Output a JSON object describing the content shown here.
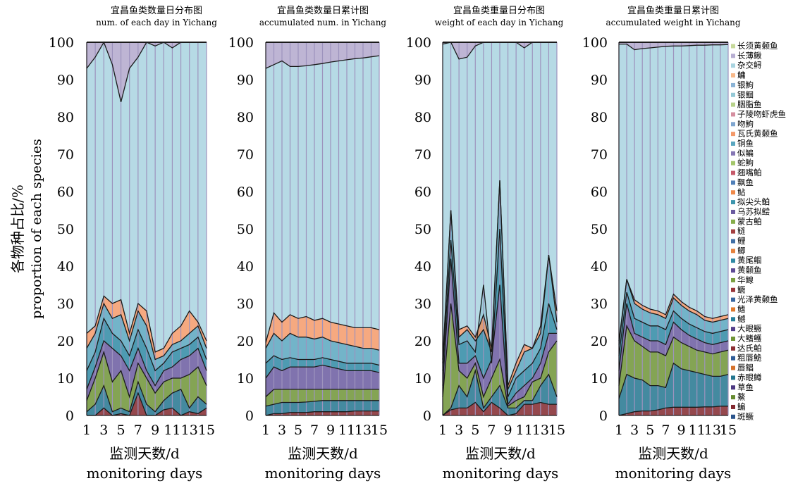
{
  "y_axis_label_cn": "各物种占比/%",
  "y_axis_label_en": "proportion of each species",
  "x_axis_label_cn": "监测天数/d",
  "x_axis_label_en": "monitoring days",
  "colors": {
    "background": "#ffffff",
    "top_band": "#b3a8cc",
    "light_cyan": "#a8d2dc",
    "orange": "#f0a070",
    "line": "#1a1a1a"
  },
  "legend": {
    "position": "right",
    "items": [
      {
        "label": "长须黄颡鱼",
        "color": "#c6d99a"
      },
      {
        "label": "长薄鳅",
        "color": "#b7aed2"
      },
      {
        "label": "杂交鲟",
        "color": "#a9d4e0"
      },
      {
        "label": "鳙",
        "color": "#f8b98a"
      },
      {
        "label": "银鮈",
        "color": "#8ab3d6"
      },
      {
        "label": "银鲴",
        "color": "#93c8d6"
      },
      {
        "label": "胭脂鱼",
        "color": "#b7d28a"
      },
      {
        "label": "子陵吻虾虎鱼",
        "color": "#d58fa0"
      },
      {
        "label": "吻鮈",
        "color": "#7fa6d0"
      },
      {
        "label": "瓦氏黄颡鱼",
        "color": "#f49a6a"
      },
      {
        "label": "铜鱼",
        "color": "#5aa7c0"
      },
      {
        "label": "似鳊",
        "color": "#8577b4"
      },
      {
        "label": "蛇鮈",
        "color": "#a3c66a"
      },
      {
        "label": "翘嘴鲌",
        "color": "#c65a6a"
      },
      {
        "label": "飘鱼",
        "color": "#4f7fb8"
      },
      {
        "label": "鲇",
        "color": "#f08a4a"
      },
      {
        "label": "拟尖头鲌",
        "color": "#3c95ad"
      },
      {
        "label": "乌苏拟鲿",
        "color": "#6a5aa0"
      },
      {
        "label": "蒙古鲌",
        "color": "#86ad4a"
      },
      {
        "label": "鲢",
        "color": "#a4403f"
      },
      {
        "label": "鲤",
        "color": "#3f6fa5"
      },
      {
        "label": "鲫",
        "color": "#e5823c"
      },
      {
        "label": "黄尾鲴",
        "color": "#2f89a4"
      },
      {
        "label": "黄颡鱼",
        "color": "#5d4a95"
      },
      {
        "label": "华鳈",
        "color": "#7a9f40"
      },
      {
        "label": "鳜",
        "color": "#99353a"
      },
      {
        "label": "光泽黄颡鱼",
        "color": "#3766a0"
      },
      {
        "label": "鳍",
        "color": "#e07a2d"
      },
      {
        "label": "鳡",
        "color": "#277f9b"
      },
      {
        "label": "大眼鳜",
        "color": "#533f8c"
      },
      {
        "label": "大鳍鳠",
        "color": "#6f9436"
      },
      {
        "label": "达氏鲌",
        "color": "#8c2e33"
      },
      {
        "label": "粗唇鮠",
        "color": "#2e5c97"
      },
      {
        "label": "唇鲳",
        "color": "#d5712a"
      },
      {
        "label": "赤眼鳟",
        "color": "#23758f"
      },
      {
        "label": "草鱼",
        "color": "#4c3882"
      },
      {
        "label": "鰲",
        "color": "#658a30"
      },
      {
        "label": "鳊",
        "color": "#82282e"
      },
      {
        "label": "斑鳜",
        "color": "#2a548c"
      }
    ]
  },
  "chart_data": [
    {
      "type": "area",
      "stacked": true,
      "title": "宜昌鱼类数量日分布图",
      "subtitle": "num. of each day in Yichang",
      "x_ticks": [
        "1",
        "3",
        "5",
        "7",
        "9",
        "11",
        "13",
        "15"
      ],
      "ylim": [
        0,
        100
      ],
      "y_ticks": [
        "0",
        "10",
        "20",
        "30",
        "40",
        "50",
        "60",
        "70",
        "80",
        "90",
        "100"
      ],
      "x": [
        1,
        2,
        3,
        4,
        5,
        6,
        7,
        8,
        9,
        10,
        11,
        12,
        13,
        14,
        15
      ],
      "boundaries": [
        [
          0,
          0,
          2,
          0,
          0.5,
          0,
          6,
          0,
          0,
          1.5,
          2,
          0,
          1,
          0.5,
          2
        ],
        [
          1,
          3,
          8,
          1,
          2,
          1,
          9,
          3,
          1,
          4,
          6,
          7,
          2,
          5,
          3
        ],
        [
          4,
          10,
          17,
          9,
          12,
          5,
          14,
          10,
          6,
          9,
          10,
          10,
          11,
          13,
          8
        ],
        [
          7,
          13,
          20,
          18,
          16,
          12,
          18,
          12,
          8,
          12,
          13,
          15,
          16,
          18,
          12
        ],
        [
          12,
          17,
          26,
          22,
          20,
          16,
          23,
          18,
          12,
          14,
          17,
          18,
          19,
          21,
          15
        ],
        [
          18,
          22,
          30,
          26,
          27,
          20,
          28,
          24,
          15,
          16,
          19,
          20,
          22,
          24,
          18
        ],
        [
          22,
          24,
          32,
          30,
          31,
          22,
          30,
          28,
          17,
          18,
          22,
          24,
          28,
          25,
          20
        ],
        [
          93,
          96,
          100,
          94,
          84,
          93,
          96,
          100,
          99,
          100,
          98.5,
          100,
          100,
          100,
          100
        ],
        [
          100,
          100,
          100,
          100,
          100,
          100,
          100,
          100,
          100,
          100,
          100,
          100,
          100,
          100,
          100
        ]
      ]
    },
    {
      "type": "area",
      "stacked": true,
      "title": "宜昌鱼类数量日累计图",
      "subtitle": "accumulated num. in Yichang",
      "x_ticks": [
        "1",
        "3",
        "5",
        "7",
        "9",
        "11",
        "13",
        "15"
      ],
      "ylim": [
        0,
        100
      ],
      "y_ticks": [
        "0",
        "10",
        "20",
        "30",
        "40",
        "50",
        "60",
        "70",
        "80",
        "90",
        "100"
      ],
      "x": [
        1,
        2,
        3,
        4,
        5,
        6,
        7,
        8,
        9,
        10,
        11,
        12,
        13,
        14,
        15
      ],
      "boundaries": [
        [
          0,
          0.5,
          0.5,
          0.8,
          0.8,
          0.8,
          1,
          1,
          1,
          1,
          1,
          1.2,
          1.2,
          1.2,
          1.2
        ],
        [
          2.5,
          3,
          3.5,
          3.5,
          3.5,
          3.6,
          3.8,
          4,
          4,
          4,
          4,
          4,
          4,
          4,
          4
        ],
        [
          5,
          7,
          7,
          7,
          7,
          7,
          7,
          7,
          7,
          7,
          7,
          7,
          7,
          7,
          7
        ],
        [
          10,
          13,
          12,
          13,
          13,
          13,
          13,
          13.5,
          13,
          12.5,
          12,
          12,
          12,
          12,
          11.5
        ],
        [
          14,
          16,
          15,
          15.5,
          15,
          15,
          15,
          15.5,
          15,
          14.5,
          14,
          14,
          14,
          14,
          13.5
        ],
        [
          18,
          22,
          20,
          22,
          21,
          21,
          20.5,
          21,
          20,
          19.5,
          19,
          18.5,
          18,
          18,
          17.5
        ],
        [
          19.5,
          27.5,
          25,
          27,
          26,
          26.5,
          25.5,
          26,
          25,
          24.5,
          24,
          23.5,
          23.5,
          23.5,
          23
        ],
        [
          93,
          94,
          95,
          93.5,
          93.5,
          93.7,
          94,
          94.3,
          94.7,
          95,
          95.3,
          95.6,
          95.8,
          96.1,
          96.4
        ],
        [
          100,
          100,
          100,
          100,
          100,
          100,
          100,
          100,
          100,
          100,
          100,
          100,
          100,
          100,
          100
        ]
      ]
    },
    {
      "type": "area",
      "stacked": true,
      "title": "宜昌鱼类重量日分布图",
      "subtitle": "weight of each day in Yichang",
      "x_ticks": [
        "1",
        "3",
        "5",
        "7",
        "9",
        "11",
        "13",
        "15"
      ],
      "ylim": [
        0,
        100
      ],
      "y_ticks": [
        "0",
        "10",
        "20",
        "30",
        "40",
        "50",
        "60",
        "70",
        "80",
        "90",
        "100"
      ],
      "x": [
        1,
        2,
        3,
        4,
        5,
        6,
        7,
        8,
        9,
        10,
        11,
        12,
        13,
        14,
        15
      ],
      "boundaries": [
        [
          0,
          1.5,
          2,
          2,
          3.5,
          1,
          3.5,
          2,
          0,
          0.5,
          3,
          3,
          3.5,
          3,
          3
        ],
        [
          0,
          2,
          8,
          5,
          12,
          2,
          5,
          8,
          2,
          2,
          4,
          4,
          8,
          11,
          5
        ],
        [
          5,
          30,
          12,
          10,
          14,
          5,
          10,
          15,
          2.5,
          4,
          5,
          9,
          10,
          17,
          20
        ],
        [
          8,
          42,
          14,
          14,
          16,
          10,
          15,
          35,
          3,
          6,
          8,
          10,
          14,
          22,
          22
        ],
        [
          12,
          47,
          19,
          20,
          17,
          35,
          14,
          50,
          5,
          10,
          12,
          14,
          18,
          30,
          23
        ],
        [
          14,
          55,
          21,
          23,
          20,
          23,
          17,
          63,
          7,
          12,
          17,
          18,
          22,
          43,
          25
        ],
        [
          15,
          55,
          23,
          24,
          21,
          27,
          18,
          63,
          8,
          14,
          19,
          18,
          24,
          43,
          28
        ],
        [
          99.5,
          100,
          95.5,
          96,
          99,
          100,
          100,
          100,
          100,
          100,
          98.5,
          100,
          100,
          100,
          100
        ],
        [
          100,
          100,
          100,
          100,
          100,
          100,
          100,
          100,
          100,
          100,
          100,
          100,
          100,
          100,
          100
        ]
      ]
    },
    {
      "type": "area",
      "stacked": true,
      "title": "宜昌鱼类重量日累计图",
      "subtitle": "accumulated weight in Yichang",
      "x_ticks": [
        "1",
        "3",
        "5",
        "7",
        "9",
        "11",
        "13",
        "15"
      ],
      "ylim": [
        0,
        100
      ],
      "y_ticks": [
        "0",
        "10",
        "20",
        "30",
        "40",
        "50",
        "60",
        "70",
        "80",
        "90",
        "100"
      ],
      "x": [
        1,
        2,
        3,
        4,
        5,
        6,
        7,
        8,
        9,
        10,
        11,
        12,
        13,
        14,
        15
      ],
      "boundaries": [
        [
          0,
          0.5,
          1,
          1.2,
          1.2,
          1.5,
          2,
          2.2,
          2.2,
          2.2,
          2.2,
          2.3,
          2.3,
          2.5,
          2.5
        ],
        [
          4.5,
          11,
          10,
          9.5,
          8,
          8,
          7.5,
          14,
          12.5,
          12,
          11.5,
          11,
          10.5,
          10.5,
          11
        ],
        [
          8,
          24,
          20,
          18.5,
          17,
          17,
          16,
          21,
          19.5,
          18.5,
          17.5,
          17,
          16.5,
          17,
          17.5
        ],
        [
          12,
          30,
          22,
          21,
          20,
          20,
          19,
          25,
          23,
          21.5,
          20.5,
          19.5,
          19,
          19.5,
          20
        ],
        [
          16,
          33,
          26,
          25,
          24,
          24,
          23,
          28,
          26,
          24.5,
          23.5,
          22.5,
          22,
          22.5,
          23
        ],
        [
          19,
          36.5,
          30,
          28.5,
          27.5,
          27,
          26,
          31.5,
          29.5,
          28,
          27,
          25.5,
          25,
          25.5,
          26
        ],
        [
          20,
          36.5,
          31,
          29.5,
          28.5,
          28,
          27,
          32.5,
          30.5,
          29,
          28,
          26.5,
          26,
          26.5,
          27
        ],
        [
          99.5,
          99.5,
          98,
          98.3,
          98.5,
          98.7,
          98.9,
          99,
          99,
          99.1,
          99.2,
          99.2,
          99.3,
          99.3,
          99.4
        ],
        [
          100,
          100,
          100,
          100,
          100,
          100,
          100,
          100,
          100,
          100,
          100,
          100,
          100,
          100,
          100
        ]
      ]
    }
  ]
}
